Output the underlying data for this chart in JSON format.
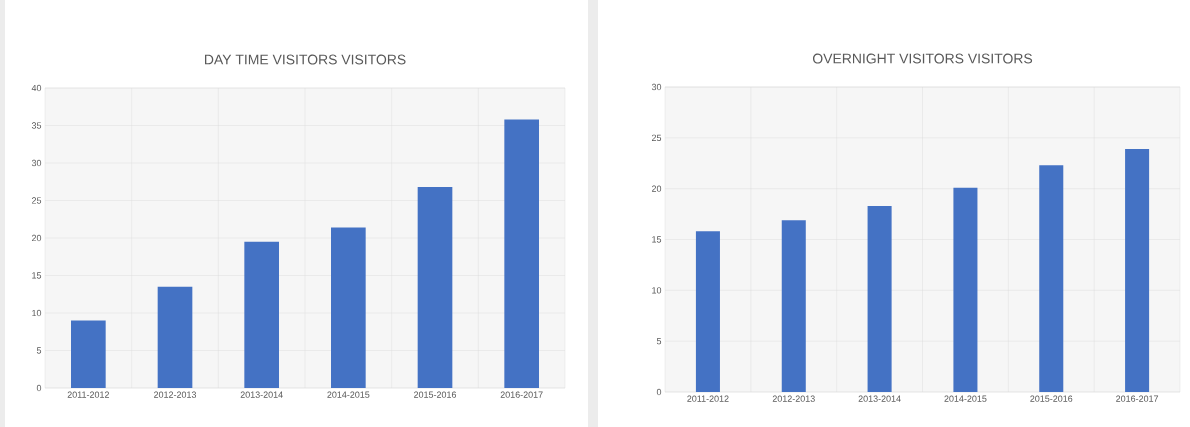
{
  "chart_data": [
    {
      "type": "bar",
      "title": "DAY TIME VISITORS VISITORS",
      "categories": [
        "2011-2012",
        "2012-2013",
        "2013-2014",
        "2014-2015",
        "2015-2016",
        "2016-2017"
      ],
      "values": [
        9,
        13.5,
        19.5,
        21.4,
        26.8,
        35.8
      ],
      "color": "#4472c4",
      "ylim": [
        0,
        40
      ],
      "yticks": [
        0,
        5,
        10,
        15,
        20,
        25,
        30,
        35,
        40
      ],
      "grid": true
    },
    {
      "type": "bar",
      "title": "OVERNIGHT VISITORS VISITORS",
      "categories": [
        "2011-2012",
        "2012-2013",
        "2013-2014",
        "2014-2015",
        "2015-2016",
        "2016-2017"
      ],
      "values": [
        15.8,
        16.9,
        18.3,
        20.1,
        22.3,
        23.9
      ],
      "color": "#4472c4",
      "ylim": [
        0,
        30
      ],
      "yticks": [
        0,
        5,
        10,
        15,
        20,
        25,
        30
      ],
      "grid": true
    }
  ]
}
